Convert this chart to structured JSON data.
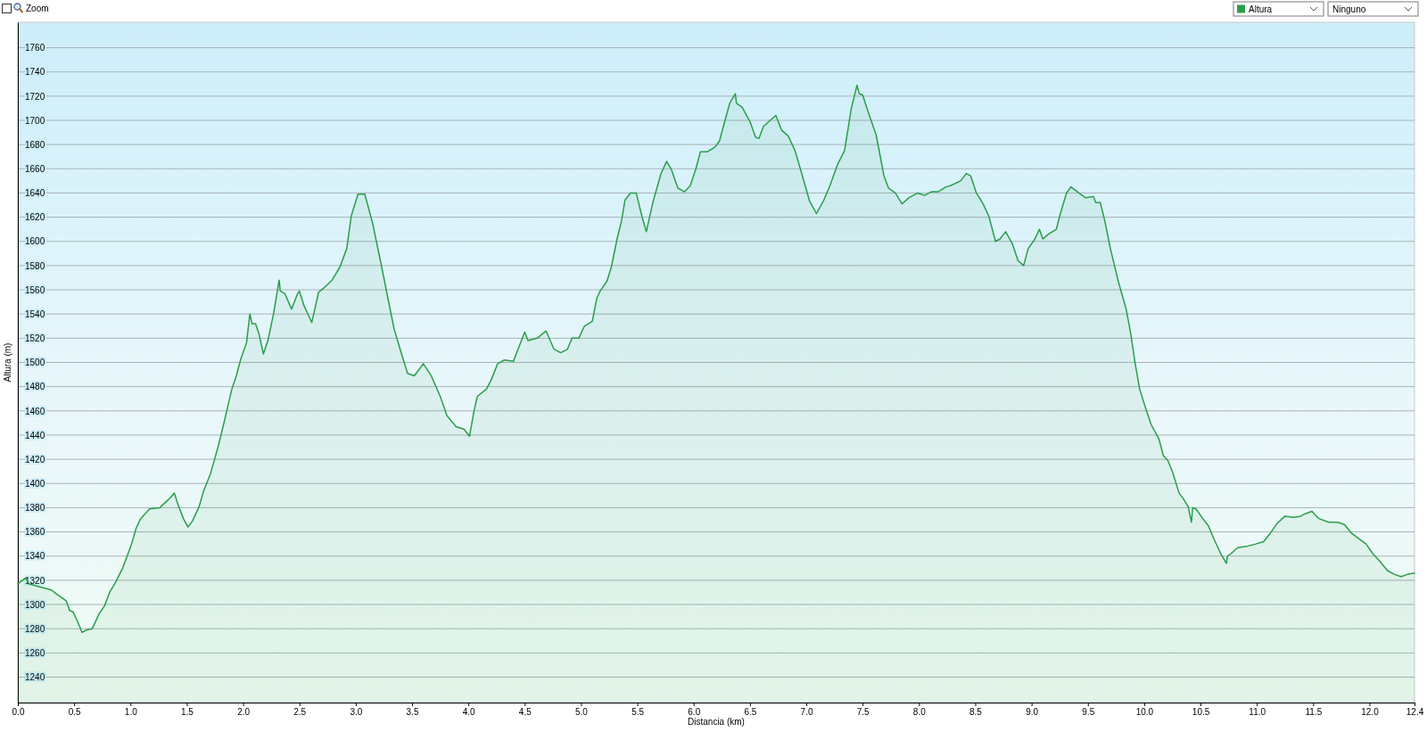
{
  "chart_data": {
    "type": "area",
    "xlabel": "Distancia (km)",
    "ylabel": "Altura (m)",
    "annotations": [
      "Zoom",
      "Ninguno"
    ],
    "x": [
      0.0,
      0.07,
      0.1,
      0.18,
      0.3,
      0.34,
      0.43,
      0.46,
      0.49,
      0.53,
      0.57,
      0.61,
      0.66,
      0.72,
      0.77,
      0.82,
      0.86,
      0.93,
      1.01,
      1.05,
      1.09,
      1.17,
      1.26,
      1.34,
      1.39,
      1.42,
      1.47,
      1.51,
      1.55,
      1.61,
      1.65,
      1.71,
      1.78,
      1.84,
      1.9,
      1.94,
      1.98,
      2.03,
      2.06,
      2.08,
      2.11,
      2.14,
      2.18,
      2.22,
      2.27,
      2.32,
      2.33,
      2.37,
      2.43,
      2.48,
      2.5,
      2.54,
      2.61,
      2.67,
      2.71,
      2.79,
      2.86,
      2.92,
      2.96,
      3.02,
      3.08,
      3.15,
      3.23,
      3.29,
      3.34,
      3.4,
      3.46,
      3.52,
      3.6,
      3.67,
      3.75,
      3.81,
      3.89,
      3.96,
      4.01,
      4.05,
      4.08,
      4.16,
      4.2,
      4.26,
      4.32,
      4.4,
      4.45,
      4.5,
      4.53,
      4.61,
      4.69,
      4.76,
      4.82,
      4.88,
      4.92,
      4.98,
      5.03,
      5.1,
      5.14,
      5.17,
      5.23,
      5.27,
      5.32,
      5.36,
      5.39,
      5.44,
      5.49,
      5.54,
      5.58,
      5.64,
      5.71,
      5.76,
      5.8,
      5.86,
      5.92,
      5.97,
      6.02,
      6.06,
      6.12,
      6.19,
      6.23,
      6.27,
      6.32,
      6.37,
      6.38,
      6.43,
      6.5,
      6.55,
      6.58,
      6.62,
      6.68,
      6.73,
      6.78,
      6.84,
      6.9,
      6.96,
      7.03,
      7.09,
      7.15,
      7.21,
      7.28,
      7.34,
      7.4,
      7.45,
      7.47,
      7.5,
      7.56,
      7.62,
      7.69,
      7.73,
      7.79,
      7.85,
      7.91,
      7.99,
      8.05,
      8.11,
      8.17,
      8.24,
      8.28,
      8.37,
      8.42,
      8.46,
      8.51,
      8.57,
      8.62,
      8.68,
      8.72,
      8.77,
      8.83,
      8.88,
      8.93,
      8.97,
      9.03,
      9.07,
      9.1,
      9.15,
      9.22,
      9.25,
      9.31,
      9.35,
      9.42,
      9.48,
      9.55,
      9.57,
      9.61,
      9.65,
      9.7,
      9.77,
      9.84,
      9.88,
      9.92,
      9.96,
      10.0,
      10.06,
      10.13,
      10.17,
      10.21,
      10.25,
      10.31,
      10.35,
      10.39,
      10.42,
      10.43,
      10.46,
      10.52,
      10.57,
      10.62,
      10.68,
      10.73,
      10.74,
      10.77,
      10.83,
      10.91,
      10.99,
      11.06,
      11.12,
      11.18,
      11.25,
      11.33,
      11.39,
      11.43,
      11.49,
      11.55,
      11.64,
      11.72,
      11.78,
      11.84,
      11.91,
      11.97,
      12.03,
      12.09,
      12.16,
      12.22,
      12.28,
      12.34,
      12.4
    ],
    "series": [
      {
        "name": "Altura",
        "color": "#2a9d4a",
        "values": [
          1317,
          1322,
          1317,
          1315,
          1312,
          1309,
          1303,
          1295,
          1294,
          1286,
          1277,
          1279,
          1280,
          1292,
          1299,
          1311,
          1317,
          1330,
          1350,
          1363,
          1371,
          1379,
          1380,
          1387,
          1392,
          1383,
          1371,
          1364,
          1369,
          1381,
          1394,
          1408,
          1431,
          1454,
          1478,
          1489,
          1503,
          1516,
          1540,
          1532,
          1532,
          1524,
          1507,
          1518,
          1540,
          1568,
          1559,
          1557,
          1544,
          1556,
          1559,
          1547,
          1533,
          1558,
          1561,
          1568,
          1579,
          1594,
          1621,
          1639,
          1639,
          1615,
          1579,
          1551,
          1528,
          1509,
          1491,
          1489,
          1499,
          1489,
          1472,
          1456,
          1447,
          1445,
          1439,
          1460,
          1472,
          1478,
          1485,
          1499,
          1502,
          1501,
          1513,
          1525,
          1518,
          1520,
          1526,
          1511,
          1508,
          1511,
          1520,
          1520,
          1530,
          1534,
          1553,
          1559,
          1567,
          1579,
          1602,
          1617,
          1634,
          1640,
          1640,
          1621,
          1608,
          1633,
          1656,
          1666,
          1660,
          1644,
          1641,
          1646,
          1660,
          1674,
          1674,
          1678,
          1683,
          1697,
          1714,
          1722,
          1714,
          1711,
          1699,
          1686,
          1685,
          1695,
          1700,
          1704,
          1692,
          1687,
          1675,
          1656,
          1633,
          1623,
          1633,
          1646,
          1664,
          1675,
          1710,
          1729,
          1722,
          1721,
          1704,
          1688,
          1654,
          1644,
          1640,
          1631,
          1636,
          1640,
          1638,
          1641,
          1641,
          1645,
          1646,
          1650,
          1656,
          1654,
          1640,
          1631,
          1621,
          1600,
          1602,
          1608,
          1598,
          1584,
          1580,
          1594,
          1602,
          1610,
          1602,
          1606,
          1610,
          1621,
          1640,
          1645,
          1640,
          1636,
          1637,
          1632,
          1632,
          1617,
          1594,
          1567,
          1544,
          1524,
          1499,
          1478,
          1466,
          1449,
          1437,
          1423,
          1419,
          1410,
          1392,
          1387,
          1381,
          1368,
          1380,
          1379,
          1371,
          1365,
          1354,
          1342,
          1334,
          1340,
          1342,
          1347,
          1348,
          1350,
          1352,
          1359,
          1367,
          1373,
          1372,
          1373,
          1375,
          1377,
          1371,
          1368,
          1368,
          1366,
          1359,
          1354,
          1350,
          1342,
          1336,
          1328,
          1325,
          1323,
          1325,
          1326
        ]
      }
    ],
    "xlim": [
      0,
      12.4
    ],
    "xticks": [
      {
        "value": 0,
        "label": "0.0"
      },
      0.5,
      {
        "value": 1,
        "label": "1.0"
      },
      1.5,
      {
        "value": 2,
        "label": "2.0"
      },
      2.5,
      {
        "value": 3,
        "label": "3.0"
      },
      3.5,
      {
        "value": 4,
        "label": "4.0"
      },
      4.5,
      {
        "value": 5,
        "label": "5.0"
      },
      5.5,
      {
        "value": 6,
        "label": "6.0"
      },
      6.5,
      {
        "value": 7,
        "label": "7.0"
      },
      7.5,
      {
        "value": 8,
        "label": "8.0"
      },
      8.5,
      {
        "value": 9,
        "label": "9.0"
      },
      9.5,
      {
        "value": 10,
        "label": "10.0"
      },
      10.5,
      {
        "value": 11,
        "label": "11.0"
      },
      11.5,
      {
        "value": 12,
        "label": "12.0"
      },
      12.4
    ],
    "ylim": [
      1219,
      1781
    ],
    "yticks": [
      1240,
      1260,
      1280,
      1300,
      1320,
      1340,
      1360,
      1380,
      1400,
      1420,
      1440,
      1460,
      1480,
      1500,
      1520,
      1540,
      1560,
      1580,
      1600,
      1620,
      1640,
      1660,
      1680,
      1700,
      1720,
      1740,
      1760
    ],
    "grid": "y",
    "legend": "top right"
  }
}
